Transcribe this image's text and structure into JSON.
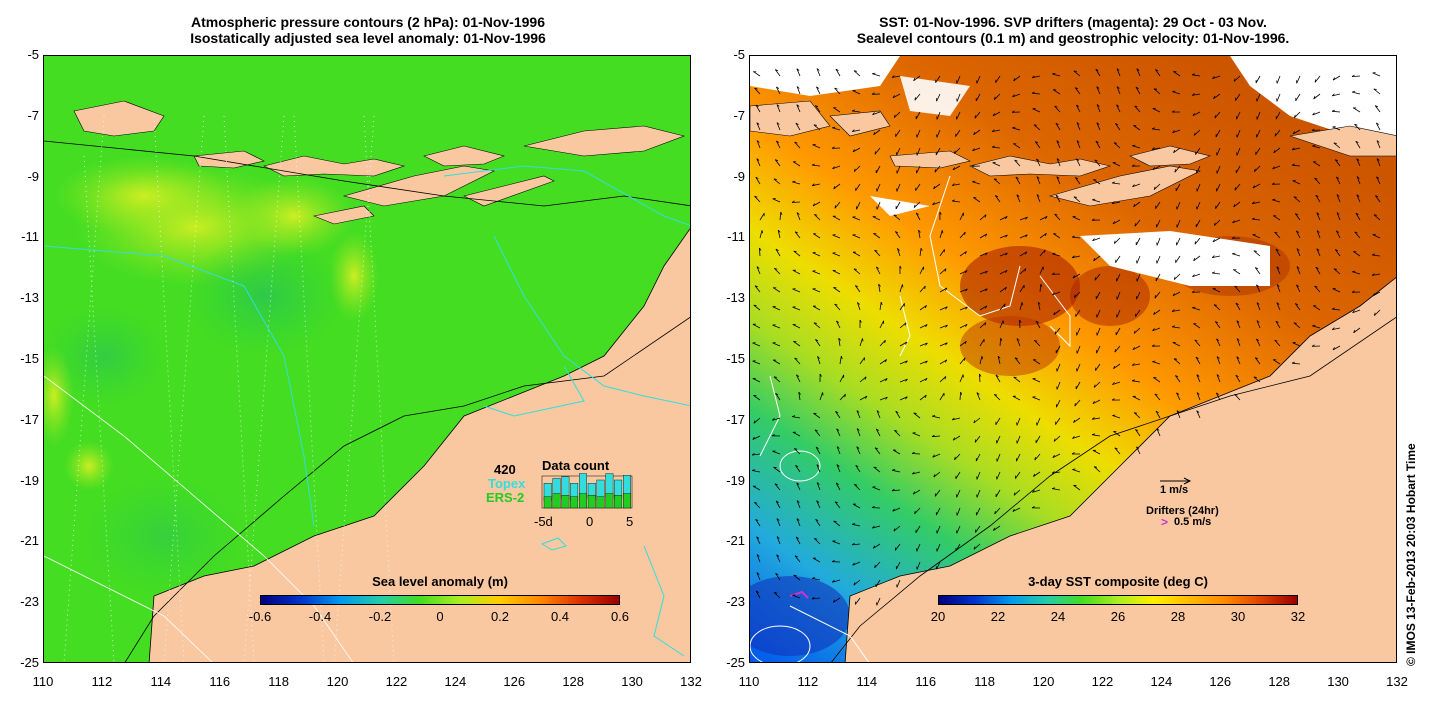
{
  "left_panel": {
    "title_line1": "Atmospheric pressure contours (2 hPa): 01-Nov-1996",
    "title_line2": "Isostatically adjusted sea level anomaly: 01-Nov-1996",
    "y_ticks": [
      "-5",
      "-7",
      "-9",
      "-11",
      "-13",
      "-15",
      "-17",
      "-19",
      "-21",
      "-23",
      "-25"
    ],
    "x_ticks": [
      "110",
      "112",
      "114",
      "116",
      "118",
      "120",
      "122",
      "124",
      "126",
      "128",
      "130",
      "132"
    ],
    "colorbar_title": "Sea level anomaly (m)",
    "colorbar_ticks": [
      "-0.6",
      "-0.4",
      "-0.2",
      "0",
      "0.2",
      "0.4",
      "0.6"
    ],
    "data_count": {
      "number": "420",
      "topex_label": "Topex",
      "ers_label": "ERS-2",
      "title": "Data count",
      "axis_labels": [
        "-5d",
        "0",
        "5"
      ],
      "topex_color": "#33dddd",
      "ers_color": "#22cc22"
    }
  },
  "right_panel": {
    "title_line1": "SST: 01-Nov-1996. SVP drifters (magenta): 29 Oct - 03 Nov.",
    "title_line2": "Sealevel contours (0.1 m) and geostrophic velocity: 01-Nov-1996.",
    "y_ticks": [
      "-5",
      "-7",
      "-9",
      "-11",
      "-13",
      "-15",
      "-17",
      "-19",
      "-21",
      "-23",
      "-25"
    ],
    "x_ticks": [
      "110",
      "112",
      "114",
      "116",
      "118",
      "120",
      "122",
      "124",
      "126",
      "128",
      "130",
      "132"
    ],
    "colorbar_title": "3-day SST composite (deg C)",
    "colorbar_ticks": [
      "20",
      "22",
      "24",
      "26",
      "28",
      "30",
      "32"
    ],
    "velocity_key": "1 m/s",
    "drifters_label": "Drifters (24hr)",
    "drifters_speed": "0.5 m/s"
  },
  "copyright": "© IMOS 13-Feb-2013 20:03 Hobart Time",
  "colors": {
    "land": "#f9c8a0",
    "ocean_green": "#33dd22",
    "drifter_magenta": "#cc33cc"
  }
}
